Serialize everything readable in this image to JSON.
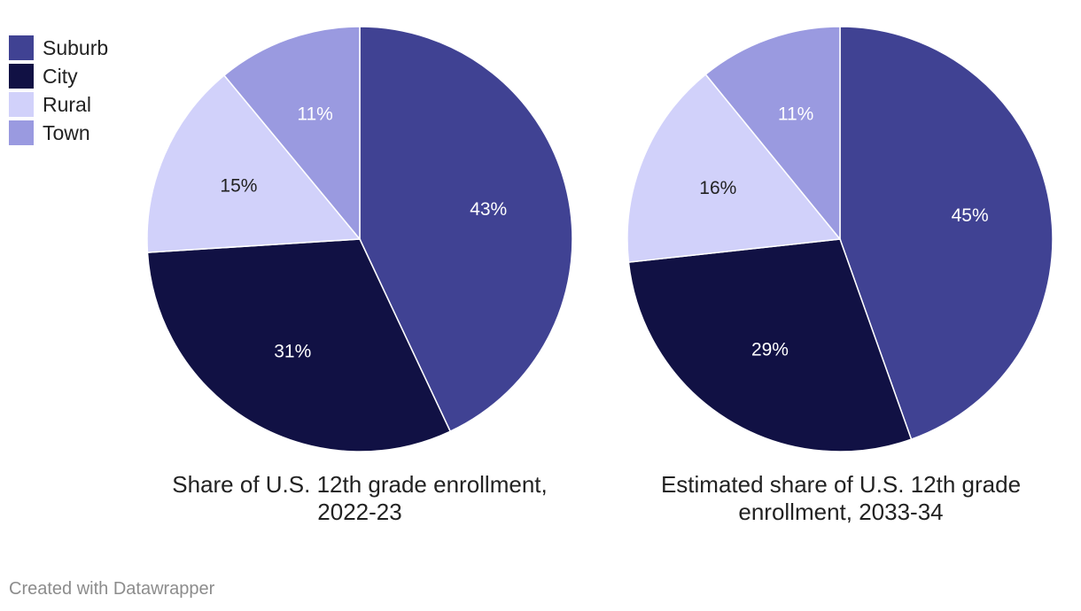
{
  "colors": {
    "Suburb": "#404293",
    "City": "#111144",
    "Rural": "#d1d1fa",
    "Town": "#9a9ae0"
  },
  "legend": [
    {
      "label": "Suburb"
    },
    {
      "label": "City"
    },
    {
      "label": "Rural"
    },
    {
      "label": "Town"
    }
  ],
  "chart_data": [
    {
      "type": "pie",
      "title": "Share of U.S. 12th grade enrollment, 2022-23",
      "title_lines": [
        "Share of U.S. 12th grade enrollment,",
        "2022-23"
      ],
      "categories": [
        "Suburb",
        "City",
        "Rural",
        "Town"
      ],
      "values": [
        43,
        31,
        15,
        11
      ],
      "labels": [
        "43%",
        "31%",
        "15%",
        "11%"
      ]
    },
    {
      "type": "pie",
      "title": "Estimated share of U.S. 12th grade enrollment, 2033-34",
      "title_lines": [
        "Estimated share of U.S. 12th grade",
        "enrollment, 2033-34"
      ],
      "categories": [
        "Suburb",
        "City",
        "Rural",
        "Town"
      ],
      "values": [
        45,
        29,
        16,
        11
      ],
      "labels": [
        "45%",
        "29%",
        "16%",
        "11%"
      ]
    }
  ],
  "footer": "Created with Datawrapper"
}
